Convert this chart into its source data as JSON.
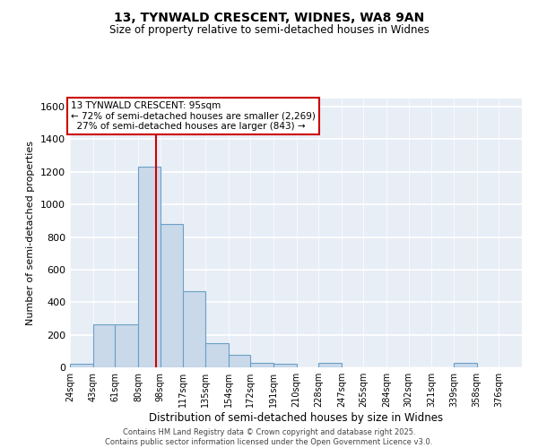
{
  "title1": "13, TYNWALD CRESCENT, WIDNES, WA8 9AN",
  "title2": "Size of property relative to semi-detached houses in Widnes",
  "xlabel": "Distribution of semi-detached houses by size in Widnes",
  "ylabel": "Number of semi-detached properties",
  "bins": [
    24,
    43,
    61,
    80,
    98,
    117,
    135,
    154,
    172,
    191,
    210,
    228,
    247,
    265,
    284,
    302,
    321,
    339,
    358,
    376,
    395
  ],
  "counts": [
    20,
    265,
    265,
    1230,
    880,
    470,
    150,
    75,
    30,
    20,
    0,
    25,
    0,
    0,
    0,
    0,
    0,
    25,
    0,
    0,
    0
  ],
  "property_size": 95,
  "property_label": "13 TYNWALD CRESCENT: 95sqm",
  "pct_smaller": 72,
  "pct_larger": 27,
  "n_smaller": 2269,
  "n_larger": 843,
  "bar_color": "#c9d9ea",
  "bar_edge_color": "#6aa0c7",
  "line_color": "#cc0000",
  "box_edge_color": "#cc0000",
  "background_color": "#e8eef6",
  "grid_color": "#d0d8e4",
  "ylim": [
    0,
    1650
  ],
  "yticks": [
    0,
    200,
    400,
    600,
    800,
    1000,
    1200,
    1400,
    1600
  ],
  "footer1": "Contains HM Land Registry data © Crown copyright and database right 2025.",
  "footer2": "Contains public sector information licensed under the Open Government Licence v3.0."
}
